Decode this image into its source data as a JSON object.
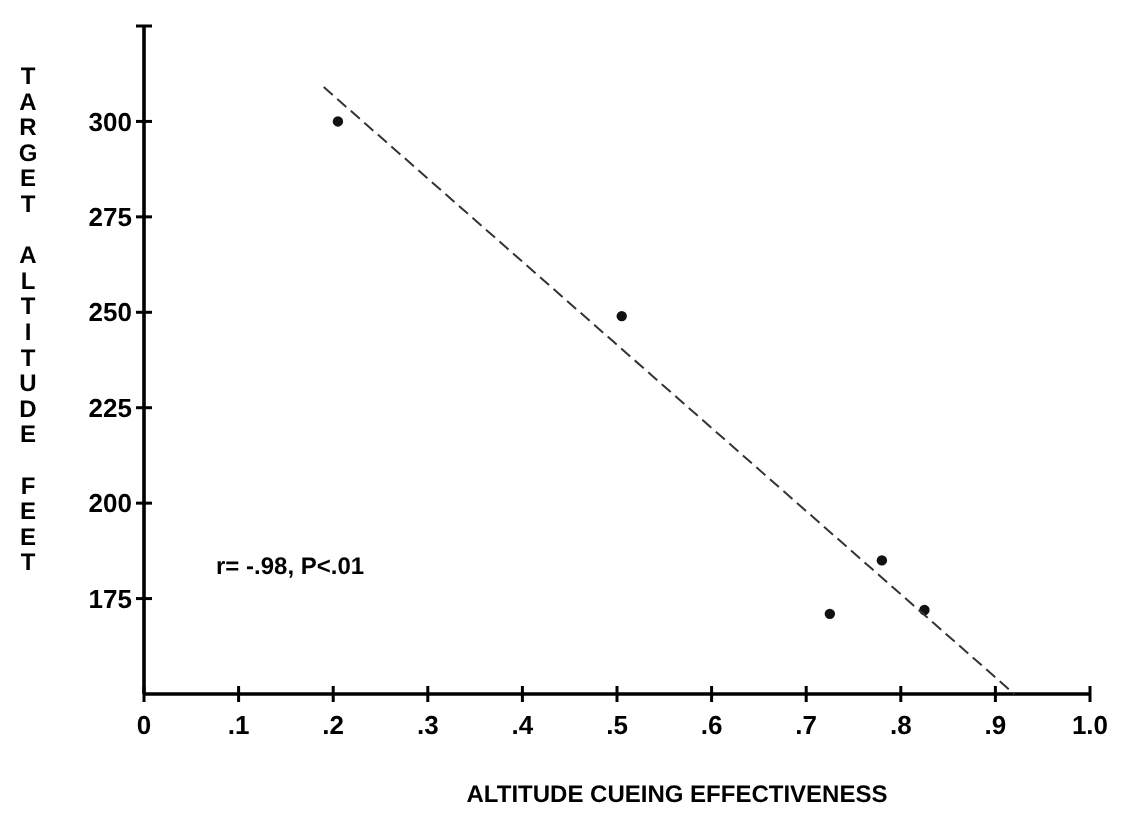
{
  "chart_data": {
    "type": "scatter",
    "xlabel": "ALTITUDE CUEING EFFECTIVENESS",
    "ylabel": "TARGET ALTITUDE FEET",
    "xlim": [
      0,
      1
    ],
    "ylim": [
      150,
      325
    ],
    "xticks": [
      0,
      {
        "value": 0.1,
        "label": ".1"
      },
      {
        "value": 0.2,
        "label": ".2"
      },
      {
        "value": 0.3,
        "label": ".3"
      },
      {
        "value": 0.4,
        "label": ".4"
      },
      {
        "value": 0.5,
        "label": ".5"
      },
      {
        "value": 0.6,
        "label": ".6"
      },
      {
        "value": 0.7,
        "label": ".7"
      },
      {
        "value": 0.8,
        "label": ".8"
      },
      {
        "value": 0.9,
        "label": ".9"
      },
      {
        "value": 1,
        "label": "1.0"
      }
    ],
    "yticks": [
      175,
      200,
      225,
      250,
      275,
      300
    ],
    "grid": false,
    "marker": "circle",
    "series": [
      {
        "color": "#111111",
        "x": [
          0.205,
          0.505,
          0.725,
          0.78,
          0.825
        ],
        "values": [
          300,
          249,
          171,
          185,
          172
        ]
      },
      {
        "type": "line",
        "color": "#333333",
        "line_style": "dashed",
        "marker": "none",
        "x": [
          0.19,
          0.92
        ],
        "values": [
          309,
          150
        ]
      }
    ],
    "annotations": [
      "r= -.98, P<.01"
    ]
  }
}
